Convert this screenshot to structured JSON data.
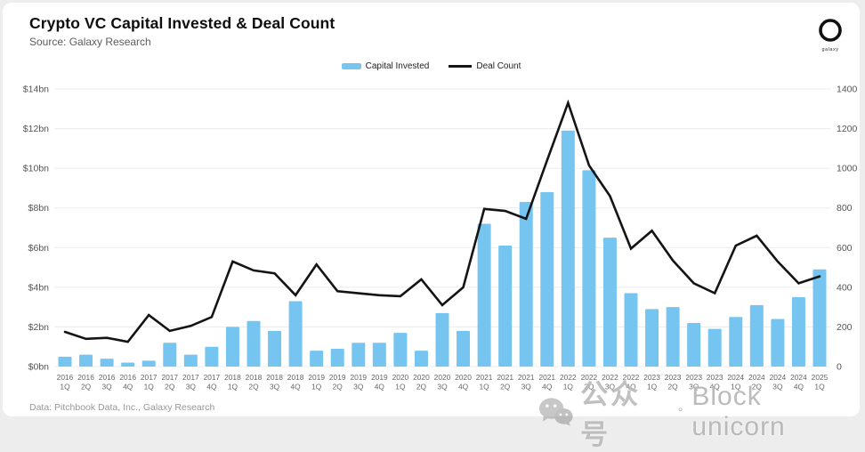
{
  "header": {
    "title": "Crypto VC Capital Invested & Deal Count",
    "source": "Source: Galaxy Research",
    "logo_label": "galaxy"
  },
  "legend": {
    "items": [
      {
        "label": "Capital Invested",
        "color": "#76C5F1",
        "type": "bar"
      },
      {
        "label": "Deal Count",
        "color": "#141414",
        "type": "line"
      }
    ]
  },
  "chart_data": {
    "type": "bar",
    "subtype": "bar+line combo, dual axis",
    "categories": [
      "2016 1Q",
      "2016 2Q",
      "2016 3Q",
      "2016 4Q",
      "2017 1Q",
      "2017 2Q",
      "2017 3Q",
      "2017 4Q",
      "2018 1Q",
      "2018 2Q",
      "2018 3Q",
      "2018 4Q",
      "2019 1Q",
      "2019 2Q",
      "2019 3Q",
      "2019 4Q",
      "2020 1Q",
      "2020 2Q",
      "2020 3Q",
      "2020 4Q",
      "2021 1Q",
      "2021 2Q",
      "2021 3Q",
      "2021 4Q",
      "2022 1Q",
      "2022 2Q",
      "2022 3Q",
      "2022 4Q",
      "2023 1Q",
      "2023 2Q",
      "2023 3Q",
      "2023 4Q",
      "2024 1Q",
      "2024 2Q",
      "2024 3Q",
      "2024 4Q",
      "2025 1Q"
    ],
    "series": [
      {
        "name": "Capital Invested",
        "type": "bar",
        "axis": "left",
        "unit": "$bn",
        "color": "#76C5F1",
        "values": [
          0.5,
          0.6,
          0.4,
          0.2,
          0.3,
          1.2,
          0.6,
          1.0,
          2.0,
          2.3,
          1.8,
          3.3,
          0.8,
          0.9,
          1.2,
          1.2,
          1.7,
          0.8,
          2.7,
          1.8,
          7.2,
          6.1,
          8.3,
          8.8,
          11.9,
          9.9,
          6.5,
          3.7,
          2.9,
          3.0,
          2.2,
          1.9,
          2.5,
          3.1,
          2.4,
          3.5,
          4.9
        ]
      },
      {
        "name": "Deal Count",
        "type": "line",
        "axis": "right",
        "unit": "deals",
        "color": "#141414",
        "values": [
          175,
          140,
          145,
          125,
          260,
          180,
          205,
          250,
          530,
          485,
          470,
          360,
          515,
          380,
          370,
          360,
          355,
          440,
          310,
          400,
          795,
          785,
          745,
          1040,
          1330,
          1015,
          860,
          595,
          685,
          535,
          420,
          370,
          610,
          660,
          530,
          420,
          455
        ]
      }
    ],
    "title": "Crypto VC Capital Invested & Deal Count",
    "left_axis": {
      "ticks": [
        "$0bn",
        "$2bn",
        "$4bn",
        "$6bn",
        "$8bn",
        "$10bn",
        "$12bn",
        "$14bn"
      ],
      "min": 0,
      "max": 14
    },
    "right_axis": {
      "ticks": [
        "0",
        "200",
        "400",
        "600",
        "800",
        "1000",
        "1200",
        "1400"
      ],
      "min": 0,
      "max": 1400
    },
    "grid": true,
    "legend_position": "top-center"
  },
  "footer": {
    "credit": "Data: Pitchbook Data, Inc., Galaxy Research"
  },
  "watermark": {
    "wechat_label": "公众号",
    "separator": "°",
    "name": "Block unicorn"
  }
}
